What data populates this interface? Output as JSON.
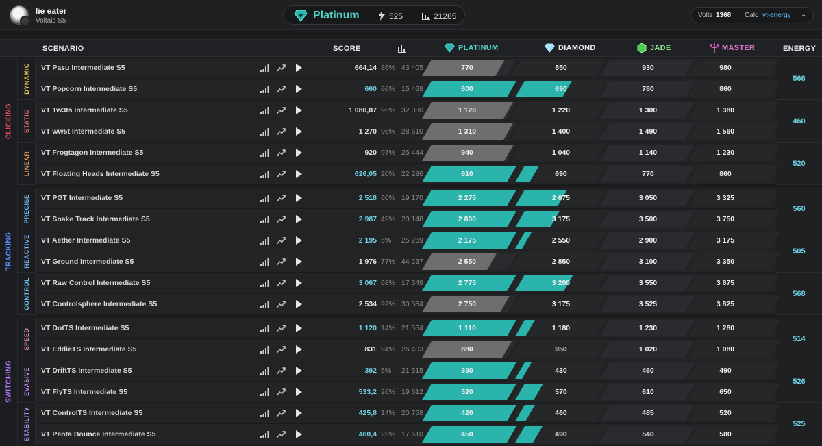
{
  "user": {
    "name": "lie eater",
    "season": "Voltaic S5"
  },
  "summary": {
    "rank": "Platinum",
    "energy": "525",
    "score": "21285"
  },
  "settings": {
    "volts_label": "Volts",
    "volts_value": "1368",
    "calc_label": "Calc",
    "calc_value": "vt-energy"
  },
  "colors": {
    "teal": "#2ab4ac",
    "platinum": "#4fd1c5",
    "grey_fill": "#6e6e6e",
    "energy": "#6fd3e3",
    "clicking": "#e0485a",
    "tracking": "#5a8cff",
    "switching": "#b07cff"
  },
  "headers": {
    "scenario": "SCENARIO",
    "score": "SCORE",
    "platinum": "PLATINUM",
    "diamond": "DIAMOND",
    "jade": "JADE",
    "master": "MASTER",
    "energy": "ENERGY"
  },
  "categories": [
    {
      "name": "CLICKING",
      "color": "#e0485a",
      "subs": [
        {
          "name": "DYNAMIC",
          "color": "#e6c44a",
          "energy": "566",
          "rows": [
            {
              "name": "VT Pasu Intermediate S5",
              "score": "664,14",
              "pct": "86%",
              "plays": "43 405",
              "fill": 0.86,
              "prog": "grey",
              "th": [
                "770",
                "850",
                "930",
                "980"
              ]
            },
            {
              "name": "VT Popcorn Intermediate S5",
              "score": "660",
              "pct": "66%",
              "plays": "15 468",
              "fill": 1.66,
              "prog": "teal",
              "th": [
                "600",
                "690",
                "780",
                "860"
              ]
            }
          ]
        },
        {
          "name": "STATIC",
          "color": "#e56a6a",
          "energy": "460",
          "rows": [
            {
              "name": "VT 1w3ts Intermediate S5",
              "score": "1 080,07",
              "pct": "96%",
              "plays": "32 080",
              "fill": 0.96,
              "prog": "grey",
              "th": [
                "1 120",
                "1 220",
                "1 300",
                "1 380"
              ]
            },
            {
              "name": "VT ww5t Intermediate S5",
              "score": "1 270",
              "pct": "96%",
              "plays": "28 610",
              "fill": 0.96,
              "prog": "grey",
              "th": [
                "1 310",
                "1 400",
                "1 490",
                "1 560"
              ]
            }
          ]
        },
        {
          "name": "LINEAR",
          "color": "#e99a62",
          "energy": "520",
          "rows": [
            {
              "name": "VT Frogtagon Intermediate S5",
              "score": "920",
              "pct": "97%",
              "plays": "25 444",
              "fill": 0.97,
              "prog": "grey",
              "th": [
                "940",
                "1 040",
                "1 140",
                "1 230"
              ]
            },
            {
              "name": "VT Floating Heads Intermediate S5",
              "score": "626,05",
              "pct": "20%",
              "plays": "22 286",
              "fill": 1.2,
              "prog": "teal",
              "th": [
                "610",
                "690",
                "770",
                "860"
              ]
            }
          ]
        }
      ]
    },
    {
      "name": "TRACKING",
      "color": "#5a8cff",
      "subs": [
        {
          "name": "PRECISE",
          "color": "#6fb4f0",
          "energy": "560",
          "rows": [
            {
              "name": "VT PGT Intermediate S5",
              "score": "2 518",
              "pct": "60%",
              "plays": "19 170",
              "fill": 1.6,
              "prog": "teal",
              "th": [
                "2 275",
                "2 675",
                "3 050",
                "3 325"
              ]
            },
            {
              "name": "VT Snake Track Intermediate S5",
              "score": "2 987",
              "pct": "49%",
              "plays": "20 148",
              "fill": 1.49,
              "prog": "teal",
              "th": [
                "2 800",
                "3 175",
                "3 500",
                "3 750"
              ]
            }
          ]
        },
        {
          "name": "REACTIVE",
          "color": "#7ab0f5",
          "energy": "505",
          "rows": [
            {
              "name": "VT Aether Intermediate S5",
              "score": "2 195",
              "pct": "5%",
              "plays": "25 269",
              "fill": 1.05,
              "prog": "teal",
              "th": [
                "2 175",
                "2 550",
                "2 900",
                "3 175"
              ]
            },
            {
              "name": "VT Ground Intermediate S5",
              "score": "1 976",
              "pct": "77%",
              "plays": "44 237",
              "fill": 0.77,
              "prog": "grey",
              "th": [
                "2 550",
                "2 850",
                "3 100",
                "3 350"
              ]
            }
          ]
        },
        {
          "name": "CONTROL",
          "color": "#6fc8f0",
          "energy": "568",
          "rows": [
            {
              "name": "VT Raw Control Intermediate S5",
              "score": "3 067",
              "pct": "68%",
              "plays": "17 349",
              "fill": 1.68,
              "prog": "teal",
              "th": [
                "2 775",
                "3 200",
                "3 550",
                "3 875"
              ]
            },
            {
              "name": "VT Controlsphere Intermediate S5",
              "score": "2 534",
              "pct": "92%",
              "plays": "30 584",
              "fill": 0.92,
              "prog": "grey",
              "th": [
                "2 750",
                "3 175",
                "3 525",
                "3 825"
              ]
            }
          ]
        }
      ]
    },
    {
      "name": "SWITCHING",
      "color": "#b07cff",
      "subs": [
        {
          "name": "SPEED",
          "color": "#e68ac9",
          "energy": "514",
          "rows": [
            {
              "name": "VT DotTS Intermediate S5",
              "score": "1 120",
              "pct": "14%",
              "plays": "21 554",
              "fill": 1.14,
              "prog": "teal",
              "th": [
                "1 110",
                "1 180",
                "1 230",
                "1 280"
              ]
            },
            {
              "name": "VT EddieTS Intermediate S5",
              "score": "831",
              "pct": "94%",
              "plays": "26 403",
              "fill": 0.94,
              "prog": "grey",
              "th": [
                "880",
                "950",
                "1 020",
                "1 080"
              ]
            }
          ]
        },
        {
          "name": "EVASIVE",
          "color": "#c48af0",
          "energy": "526",
          "rows": [
            {
              "name": "VT DriftTS Intermediate S5",
              "score": "392",
              "pct": "5%",
              "plays": "21 515",
              "fill": 1.05,
              "prog": "teal",
              "th": [
                "390",
                "430",
                "460",
                "490"
              ]
            },
            {
              "name": "VT FlyTS Intermediate S5",
              "score": "533,2",
              "pct": "26%",
              "plays": "19 612",
              "fill": 1.26,
              "prog": "teal",
              "th": [
                "520",
                "570",
                "610",
                "650"
              ]
            }
          ]
        },
        {
          "name": "STABILITY",
          "color": "#a79cf5",
          "energy": "525",
          "rows": [
            {
              "name": "VT ControlTS Intermediate S5",
              "score": "425,8",
              "pct": "14%",
              "plays": "20 758",
              "fill": 1.14,
              "prog": "teal",
              "th": [
                "420",
                "460",
                "485",
                "520"
              ]
            },
            {
              "name": "VT Penta Bounce Intermediate S5",
              "score": "460,4",
              "pct": "25%",
              "plays": "17 610",
              "fill": 1.25,
              "prog": "teal",
              "th": [
                "450",
                "490",
                "540",
                "580"
              ]
            }
          ]
        }
      ]
    }
  ]
}
